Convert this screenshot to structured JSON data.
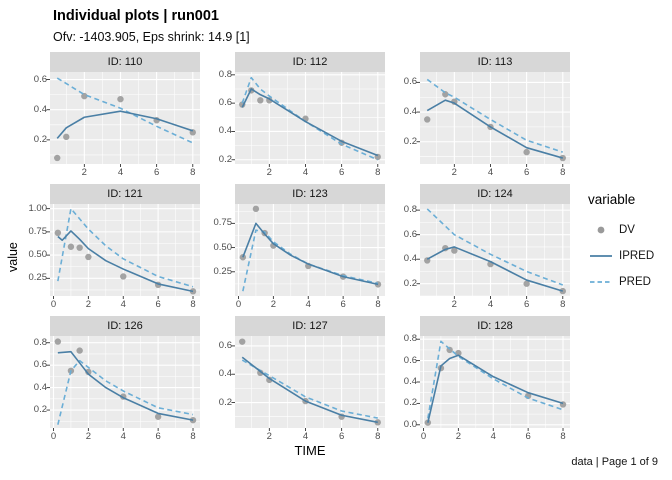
{
  "header": {
    "title": "Individual plots | run001",
    "subtitle": "Ofv: -1403.905, Eps shrink: 14.9 [1]"
  },
  "axes": {
    "x_label": "TIME",
    "y_label": "value"
  },
  "legend": {
    "title": "variable",
    "entries": [
      {
        "label": "DV",
        "symbol": "point"
      },
      {
        "label": "IPRED",
        "symbol": "solid-line"
      },
      {
        "label": "PRED",
        "symbol": "dashed-line"
      }
    ]
  },
  "caption": "data | Page 1 of 9",
  "colors": {
    "dv": "#9a9a9a",
    "ipred": "#4a7fa5",
    "pred": "#6baed6",
    "panel_bg": "#ebebeb",
    "strip_bg": "#d7d7d7",
    "grid": "#ffffff",
    "tick": "#333333"
  },
  "chart_data": [
    {
      "type": "line",
      "facet": "ID: 110",
      "x_ticks": [
        "2",
        "4",
        "6",
        "8"
      ],
      "y_ticks": [
        "0.2",
        "0.4",
        "0.6"
      ],
      "x_range": [
        0.1,
        8.4
      ],
      "y_range": [
        0.04,
        0.65
      ],
      "series": [
        {
          "name": "DV",
          "kind": "scatter",
          "points": [
            [
              0.5,
              0.08
            ],
            [
              1,
              0.22
            ],
            [
              2,
              0.49
            ],
            [
              4,
              0.47
            ],
            [
              6,
              0.33
            ],
            [
              8,
              0.25
            ]
          ]
        },
        {
          "name": "IPRED",
          "kind": "line",
          "points": [
            [
              0.5,
              0.21
            ],
            [
              1,
              0.28
            ],
            [
              2,
              0.35
            ],
            [
              4,
              0.39
            ],
            [
              6,
              0.34
            ],
            [
              8,
              0.26
            ]
          ]
        },
        {
          "name": "PRED",
          "kind": "dashed",
          "points": [
            [
              0.5,
              0.61
            ],
            [
              2,
              0.5
            ],
            [
              4,
              0.41
            ],
            [
              6,
              0.29
            ],
            [
              8,
              0.18
            ]
          ]
        }
      ]
    },
    {
      "type": "line",
      "facet": "ID: 112",
      "x_ticks": [
        "2",
        "4",
        "6",
        "8"
      ],
      "y_ticks": [
        "0.2",
        "0.4",
        "0.6",
        "0.8"
      ],
      "x_range": [
        0.1,
        8.4
      ],
      "y_range": [
        0.17,
        0.82
      ],
      "series": [
        {
          "name": "DV",
          "kind": "scatter",
          "points": [
            [
              0.5,
              0.59
            ],
            [
              1,
              0.69
            ],
            [
              1.5,
              0.62
            ],
            [
              2,
              0.62
            ],
            [
              4,
              0.49
            ],
            [
              6,
              0.32
            ],
            [
              8,
              0.22
            ]
          ]
        },
        {
          "name": "IPRED",
          "kind": "line",
          "points": [
            [
              0.5,
              0.57
            ],
            [
              1,
              0.7
            ],
            [
              1.5,
              0.66
            ],
            [
              2,
              0.63
            ],
            [
              4,
              0.47
            ],
            [
              6,
              0.33
            ],
            [
              8,
              0.23
            ]
          ]
        },
        {
          "name": "PRED",
          "kind": "dashed",
          "points": [
            [
              0.5,
              0.6
            ],
            [
              1,
              0.78
            ],
            [
              1.5,
              0.7
            ],
            [
              2,
              0.65
            ],
            [
              4,
              0.47
            ],
            [
              6,
              0.31
            ],
            [
              8,
              0.2
            ]
          ]
        }
      ]
    },
    {
      "type": "line",
      "facet": "ID: 113",
      "x_ticks": [
        "2",
        "4",
        "6",
        "8"
      ],
      "y_ticks": [
        "0.2",
        "0.4",
        "0.6"
      ],
      "x_range": [
        0.1,
        8.4
      ],
      "y_range": [
        0.05,
        0.67
      ],
      "series": [
        {
          "name": "DV",
          "kind": "scatter",
          "points": [
            [
              0.5,
              0.35
            ],
            [
              1.5,
              0.52
            ],
            [
              2,
              0.47
            ],
            [
              4,
              0.3
            ],
            [
              6,
              0.13
            ],
            [
              8,
              0.09
            ]
          ]
        },
        {
          "name": "IPRED",
          "kind": "line",
          "points": [
            [
              0.5,
              0.41
            ],
            [
              1.5,
              0.48
            ],
            [
              2,
              0.46
            ],
            [
              4,
              0.3
            ],
            [
              6,
              0.16
            ],
            [
              8,
              0.09
            ]
          ]
        },
        {
          "name": "PRED",
          "kind": "dashed",
          "points": [
            [
              0.5,
              0.62
            ],
            [
              1.5,
              0.53
            ],
            [
              2,
              0.5
            ],
            [
              4,
              0.35
            ],
            [
              6,
              0.21
            ],
            [
              8,
              0.13
            ]
          ]
        }
      ]
    },
    {
      "type": "line",
      "facet": "ID: 121",
      "x_ticks": [
        "0",
        "2",
        "4",
        "6",
        "8"
      ],
      "y_ticks": [
        "0.25",
        "0.50",
        "0.75",
        "1.00"
      ],
      "x_range": [
        -0.2,
        8.4
      ],
      "y_range": [
        0.06,
        1.05
      ],
      "series": [
        {
          "name": "DV",
          "kind": "scatter",
          "points": [
            [
              0.25,
              0.74
            ],
            [
              1,
              0.59
            ],
            [
              1.5,
              0.58
            ],
            [
              2,
              0.48
            ],
            [
              4,
              0.27
            ],
            [
              6,
              0.18
            ],
            [
              8,
              0.11
            ]
          ]
        },
        {
          "name": "IPRED",
          "kind": "line",
          "points": [
            [
              0.25,
              0.7
            ],
            [
              0.5,
              0.66
            ],
            [
              1,
              0.76
            ],
            [
              1.5,
              0.67
            ],
            [
              2,
              0.57
            ],
            [
              3,
              0.44
            ],
            [
              4,
              0.35
            ],
            [
              6,
              0.19
            ],
            [
              8,
              0.11
            ]
          ]
        },
        {
          "name": "PRED",
          "kind": "dashed",
          "points": [
            [
              0.25,
              0.22
            ],
            [
              1,
              1.0
            ],
            [
              1.5,
              0.89
            ],
            [
              2,
              0.78
            ],
            [
              3,
              0.6
            ],
            [
              4,
              0.46
            ],
            [
              6,
              0.27
            ],
            [
              8,
              0.16
            ]
          ]
        }
      ]
    },
    {
      "type": "line",
      "facet": "ID: 123",
      "x_ticks": [
        "0",
        "2",
        "4",
        "6",
        "8"
      ],
      "y_ticks": [
        "0.25",
        "0.50",
        "0.75"
      ],
      "x_range": [
        -0.2,
        8.4
      ],
      "y_range": [
        0.0,
        0.95
      ],
      "series": [
        {
          "name": "DV",
          "kind": "scatter",
          "points": [
            [
              0.25,
              0.4
            ],
            [
              1,
              0.9
            ],
            [
              1.5,
              0.65
            ],
            [
              2,
              0.52
            ],
            [
              4,
              0.31
            ],
            [
              6,
              0.2
            ],
            [
              8,
              0.12
            ]
          ]
        },
        {
          "name": "IPRED",
          "kind": "line",
          "points": [
            [
              0.25,
              0.4
            ],
            [
              1,
              0.75
            ],
            [
              1.5,
              0.64
            ],
            [
              2,
              0.54
            ],
            [
              3,
              0.42
            ],
            [
              4,
              0.33
            ],
            [
              6,
              0.2
            ],
            [
              8,
              0.12
            ]
          ]
        },
        {
          "name": "PRED",
          "kind": "dashed",
          "points": [
            [
              0.25,
              0.05
            ],
            [
              1,
              0.68
            ],
            [
              1.5,
              0.66
            ],
            [
              2,
              0.56
            ],
            [
              3,
              0.43
            ],
            [
              4,
              0.33
            ],
            [
              6,
              0.21
            ],
            [
              8,
              0.13
            ]
          ]
        }
      ]
    },
    {
      "type": "line",
      "facet": "ID: 124",
      "x_ticks": [
        "2",
        "4",
        "6",
        "8"
      ],
      "y_ticks": [
        "0.2",
        "0.4",
        "0.6",
        "0.8"
      ],
      "x_range": [
        0.1,
        8.4
      ],
      "y_range": [
        0.1,
        0.85
      ],
      "series": [
        {
          "name": "DV",
          "kind": "scatter",
          "points": [
            [
              0.5,
              0.39
            ],
            [
              1.5,
              0.49
            ],
            [
              2,
              0.47
            ],
            [
              4,
              0.36
            ],
            [
              6,
              0.2
            ],
            [
              8,
              0.14
            ]
          ]
        },
        {
          "name": "IPRED",
          "kind": "line",
          "points": [
            [
              0.5,
              0.4
            ],
            [
              1.5,
              0.48
            ],
            [
              2,
              0.5
            ],
            [
              4,
              0.38
            ],
            [
              6,
              0.23
            ],
            [
              8,
              0.14
            ]
          ]
        },
        {
          "name": "PRED",
          "kind": "dashed",
          "points": [
            [
              0.5,
              0.81
            ],
            [
              2,
              0.6
            ],
            [
              4,
              0.44
            ],
            [
              6,
              0.3
            ],
            [
              8,
              0.19
            ]
          ]
        }
      ]
    },
    {
      "type": "line",
      "facet": "ID: 126",
      "x_ticks": [
        "0",
        "2",
        "4",
        "6",
        "8"
      ],
      "y_ticks": [
        "0.2",
        "0.4",
        "0.6",
        "0.8"
      ],
      "x_range": [
        -0.2,
        8.4
      ],
      "y_range": [
        0.04,
        0.86
      ],
      "series": [
        {
          "name": "DV",
          "kind": "scatter",
          "points": [
            [
              0.25,
              0.81
            ],
            [
              1,
              0.55
            ],
            [
              1.5,
              0.73
            ],
            [
              2,
              0.54
            ],
            [
              4,
              0.32
            ],
            [
              6,
              0.14
            ],
            [
              8,
              0.11
            ]
          ]
        },
        {
          "name": "IPRED",
          "kind": "line",
          "points": [
            [
              0.25,
              0.71
            ],
            [
              1,
              0.72
            ],
            [
              1.5,
              0.62
            ],
            [
              2,
              0.52
            ],
            [
              3,
              0.4
            ],
            [
              4,
              0.31
            ],
            [
              6,
              0.17
            ],
            [
              8,
              0.11
            ]
          ]
        },
        {
          "name": "PRED",
          "kind": "dashed",
          "points": [
            [
              0.25,
              0.07
            ],
            [
              1,
              0.55
            ],
            [
              1.5,
              0.64
            ],
            [
              2,
              0.58
            ],
            [
              3,
              0.46
            ],
            [
              4,
              0.37
            ],
            [
              6,
              0.22
            ],
            [
              8,
              0.16
            ]
          ]
        }
      ]
    },
    {
      "type": "line",
      "facet": "ID: 127",
      "x_ticks": [
        "2",
        "4",
        "6",
        "8"
      ],
      "y_ticks": [
        "0.2",
        "0.4",
        "0.6"
      ],
      "x_range": [
        0.1,
        8.4
      ],
      "y_range": [
        0.02,
        0.67
      ],
      "series": [
        {
          "name": "DV",
          "kind": "scatter",
          "points": [
            [
              0.5,
              0.63
            ],
            [
              1.5,
              0.41
            ],
            [
              2,
              0.36
            ],
            [
              4,
              0.21
            ],
            [
              6,
              0.1
            ],
            [
              8,
              0.06
            ]
          ]
        },
        {
          "name": "IPRED",
          "kind": "line",
          "points": [
            [
              0.5,
              0.52
            ],
            [
              2,
              0.37
            ],
            [
              4,
              0.21
            ],
            [
              6,
              0.11
            ],
            [
              8,
              0.06
            ]
          ]
        },
        {
          "name": "PRED",
          "kind": "dashed",
          "points": [
            [
              0.5,
              0.5
            ],
            [
              2,
              0.39
            ],
            [
              4,
              0.24
            ],
            [
              6,
              0.14
            ],
            [
              8,
              0.09
            ]
          ]
        }
      ]
    },
    {
      "type": "line",
      "facet": "ID: 128",
      "x_ticks": [
        "0",
        "2",
        "4",
        "6",
        "8"
      ],
      "y_ticks": [
        "0.0",
        "0.2",
        "0.4",
        "0.6",
        "0.8"
      ],
      "x_range": [
        -0.2,
        8.4
      ],
      "y_range": [
        -0.03,
        0.83
      ],
      "series": [
        {
          "name": "DV",
          "kind": "scatter",
          "points": [
            [
              0.25,
              0.02
            ],
            [
              1,
              0.53
            ],
            [
              1.5,
              0.7
            ],
            [
              2,
              0.67
            ],
            [
              6,
              0.27
            ],
            [
              8,
              0.19
            ]
          ]
        },
        {
          "name": "IPRED",
          "kind": "line",
          "points": [
            [
              0.25,
              0.02
            ],
            [
              1,
              0.55
            ],
            [
              1.5,
              0.62
            ],
            [
              2,
              0.65
            ],
            [
              4,
              0.45
            ],
            [
              6,
              0.3
            ],
            [
              8,
              0.2
            ]
          ]
        },
        {
          "name": "PRED",
          "kind": "dashed",
          "points": [
            [
              0.25,
              0.06
            ],
            [
              1,
              0.78
            ],
            [
              1.5,
              0.71
            ],
            [
              2,
              0.64
            ],
            [
              4,
              0.43
            ],
            [
              6,
              0.25
            ],
            [
              8,
              0.14
            ]
          ]
        }
      ]
    }
  ]
}
